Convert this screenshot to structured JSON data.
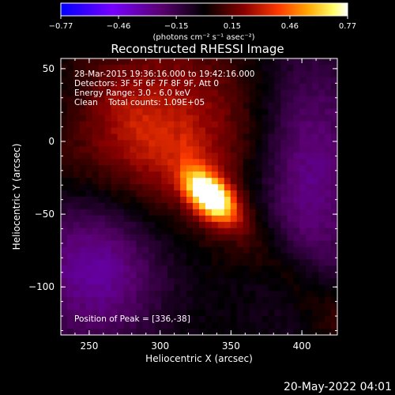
{
  "chart_data": {
    "type": "heatmap",
    "title": "Reconstructed RHESSI Image",
    "xlabel": "Heliocentric X (arcsec)",
    "ylabel": "Heliocentric Y (arcsec)",
    "xlim": [
      230,
      425
    ],
    "ylim": [
      -133,
      57
    ],
    "xticks": [
      "250",
      "300",
      "350",
      "400"
    ],
    "yticks": [
      "50",
      "0",
      "−50",
      "−100"
    ],
    "colorbar": {
      "ticks": [
        "−0.77",
        "−0.46",
        "−0.15",
        "0.15",
        "0.46",
        "0.77"
      ],
      "range": [
        -0.77,
        0.77
      ],
      "unit_label": "(photons cm⁻² s⁻¹ asec⁻²)",
      "colors": [
        "#0000ff",
        "#7700ff",
        "#5a0070",
        "#000000",
        "#8a0000",
        "#ff3a00",
        "#ffa500",
        "#ffff66",
        "#ffffff"
      ]
    },
    "annotations": [
      "28-Mar-2015 19:36:16.000 to 19:42:16.000",
      "Detectors: 3F 5F 6F 7F 8F 9F, Att 0",
      "Energy Range: 3.0 - 6.0 keV",
      "Clean    Total counts: 1.09E+05"
    ],
    "peak_label": "Position of Peak = [336,-38]",
    "peak": {
      "x": 336,
      "y": -38
    },
    "footer_date": "20-May-2022 04:01"
  }
}
